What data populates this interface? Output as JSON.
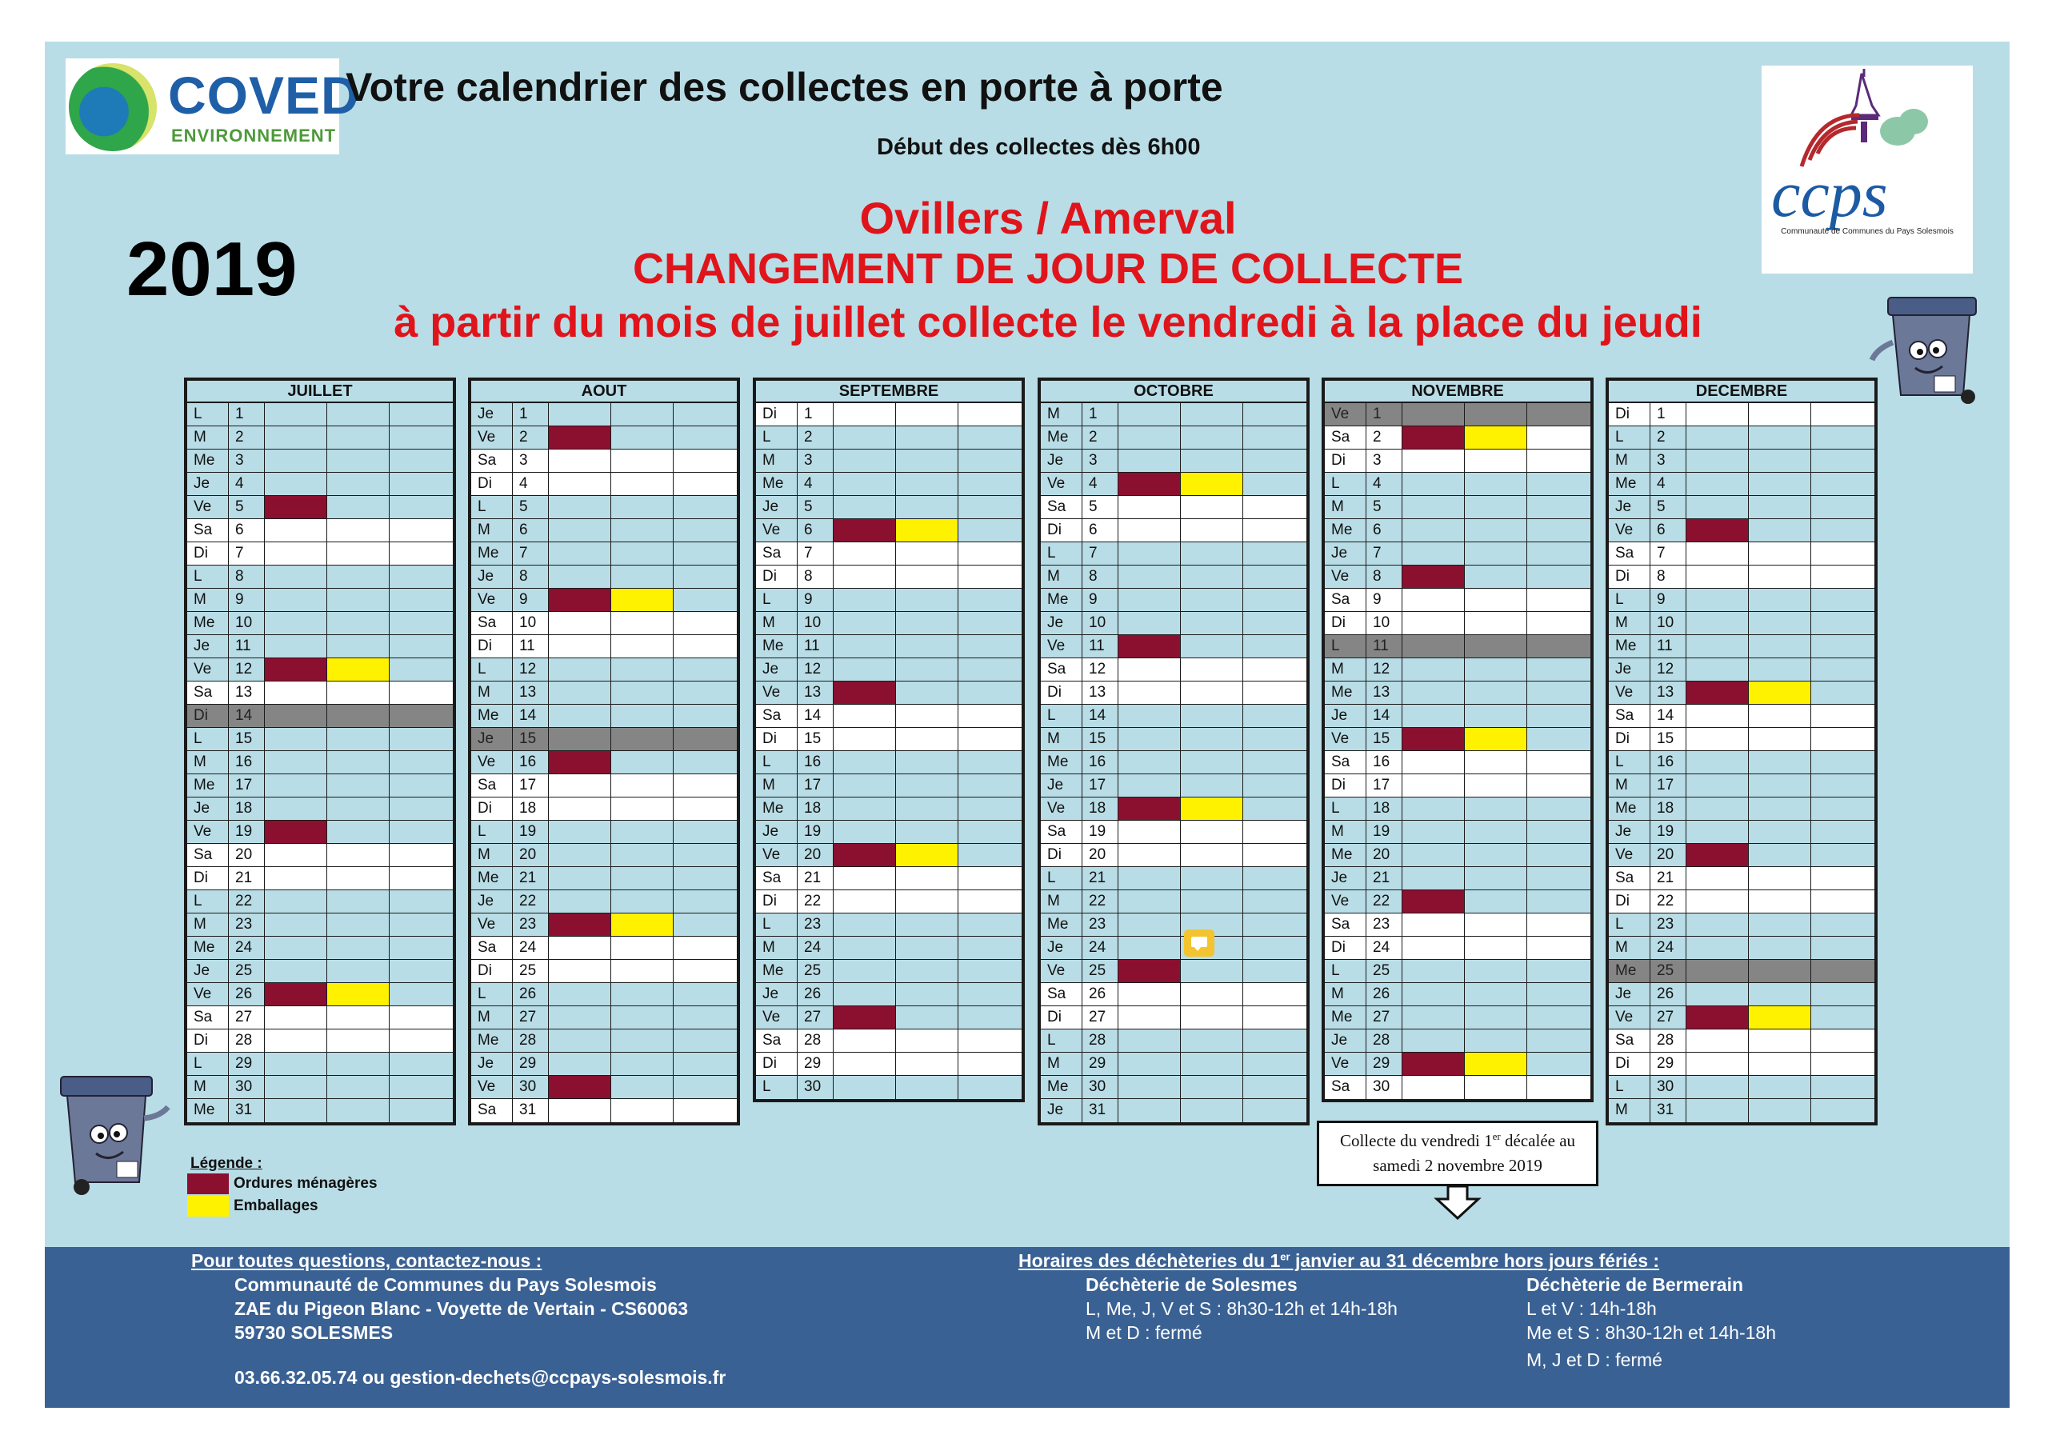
{
  "header": {
    "logo_brand": "COVED",
    "logo_sub": "ENVIRONNEMENT",
    "title": "Votre calendrier des collectes en porte à porte",
    "start_time": "Début des collectes dès 6h00",
    "year": "2019",
    "place": "Ovillers / Amerval",
    "change_notice": "CHANGEMENT DE JOUR DE COLLECTE",
    "change_detail": "à partir du mois de juillet collecte le vendredi à la place du jeudi",
    "ccps_logo_text": "ccps",
    "ccps_logo_caption": "Communauté de Communes du Pays Solesmois"
  },
  "colors": {
    "ordures": "#8b1030",
    "emballages": "#fff200",
    "holiday": "#858585",
    "background": "#b9dde6",
    "footer": "#3a6193",
    "alert": "#e0141b"
  },
  "calendar": [
    {
      "name": "JUILLET",
      "start": "L",
      "days": 31,
      "holidays": [
        14
      ],
      "om": [
        5,
        12,
        19,
        26
      ],
      "emb": [
        12,
        26
      ]
    },
    {
      "name": "AOUT",
      "start": "Je",
      "days": 31,
      "holidays": [
        15
      ],
      "om": [
        2,
        9,
        16,
        23,
        30
      ],
      "emb": [
        9,
        23
      ]
    },
    {
      "name": "SEPTEMBRE",
      "start": "Di",
      "days": 30,
      "holidays": [],
      "om": [
        6,
        13,
        20,
        27
      ],
      "emb": [
        6,
        20
      ]
    },
    {
      "name": "OCTOBRE",
      "start": "M",
      "days": 31,
      "holidays": [],
      "om": [
        4,
        11,
        18,
        25
      ],
      "emb": [
        4,
        18
      ]
    },
    {
      "name": "NOVEMBRE",
      "start": "Ve",
      "days": 30,
      "holidays": [
        1,
        11
      ],
      "om": [
        2,
        8,
        15,
        22,
        29
      ],
      "emb": [
        2,
        15,
        29
      ]
    },
    {
      "name": "DECEMBRE",
      "start": "Di",
      "days": 31,
      "holidays": [
        25
      ],
      "om": [
        6,
        13,
        20,
        27
      ],
      "emb": [
        13,
        27
      ]
    }
  ],
  "note_icon": "comment-icon",
  "callout": {
    "line1_before": "Collecte du vendredi 1",
    "line1_sup": "er",
    "line1_after": " décalée au",
    "line2": "samedi 2 novembre 2019"
  },
  "legend": {
    "title": "Légende :",
    "ordures": "Ordures ménagères",
    "emballages": "Emballages"
  },
  "footer": {
    "contact_title": "Pour toutes questions, contactez-nous :",
    "org": "Communauté de Communes du Pays Solesmois",
    "address1": "ZAE du Pigeon Blanc - Voyette de Vertain - CS60063",
    "address2": "59730 SOLESMES",
    "contact": "03.66.32.05.74 ou gestion-dechets@ccpays-solesmois.fr",
    "hours_title_before": "Horaires des déchèteries du 1",
    "hours_title_sup": "er",
    "hours_title_after": " janvier au 31 décembre hors jours fériés :",
    "site1_name": "Déchèterie de Solesmes",
    "site1_line1": "L, Me, J, V et S : 8h30-12h et 14h-18h",
    "site1_line2": "M et D : fermé",
    "site2_name": "Déchèterie de Bermerain",
    "site2_line1": "L et V : 14h-18h",
    "site2_line2": "Me et S : 8h30-12h et 14h-18h",
    "site2_line3": "M, J et D : fermé"
  }
}
